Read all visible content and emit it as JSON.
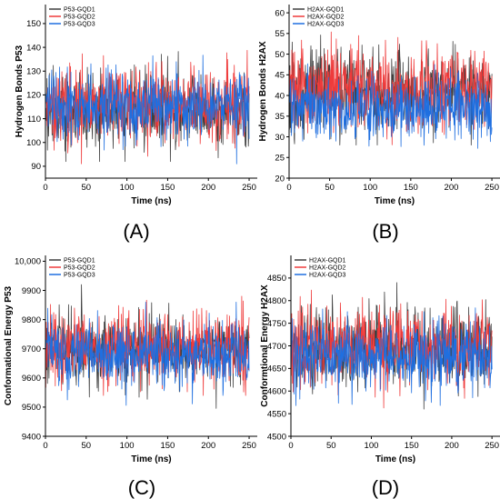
{
  "chart_data": [
    {
      "type": "line",
      "panel_label": "(A)",
      "xlabel": "Time (ns)",
      "ylabel": "Hydrogen Bonds P53",
      "xlim": [
        0,
        260
      ],
      "ylim": [
        85,
        158
      ],
      "xticks": [
        "0",
        "50",
        "100",
        "150",
        "200",
        "250"
      ],
      "yticks": [
        "90",
        "100",
        "110",
        "120",
        "130",
        "140",
        "150"
      ],
      "legend": "top-left",
      "series": [
        {
          "name": "P53-GQD1",
          "color": "#3f3f3f",
          "mean": 114,
          "spread": 8,
          "min": 92,
          "max": 140
        },
        {
          "name": "P53-GQD2",
          "color": "#ef3b3b",
          "mean": 116,
          "spread": 8,
          "min": 90,
          "max": 147
        },
        {
          "name": "P53-GQD3",
          "color": "#1f6fe0",
          "mean": 115,
          "spread": 7,
          "min": 91,
          "max": 137
        }
      ]
    },
    {
      "type": "line",
      "panel_label": "(B)",
      "xlabel": "Time (ns)",
      "ylabel": "Hydrogen Bonds H2AX",
      "xlim": [
        0,
        260
      ],
      "ylim": [
        20,
        62
      ],
      "xticks": [
        "0",
        "50",
        "100",
        "150",
        "200",
        "250"
      ],
      "yticks": [
        "20",
        "25",
        "30",
        "35",
        "40",
        "45",
        "50",
        "55",
        "60"
      ],
      "legend": "top-left",
      "series": [
        {
          "name": "H2AX-GQD1",
          "color": "#3f3f3f",
          "mean": 41,
          "spread": 5,
          "min": 28,
          "max": 57
        },
        {
          "name": "H2AX-GQD2",
          "color": "#ef3b3b",
          "mean": 42,
          "spread": 5,
          "min": 25,
          "max": 56
        },
        {
          "name": "H2AX-GQD3",
          "color": "#1f6fe0",
          "mean": 37,
          "spread": 4,
          "min": 23,
          "max": 50
        }
      ]
    },
    {
      "type": "line",
      "panel_label": "(C)",
      "xlabel": "Time (ns)",
      "ylabel": "Conformational Energy P53",
      "xlim": [
        0,
        260
      ],
      "ylim": [
        9400,
        10020
      ],
      "xticks": [
        "0",
        "50",
        "100",
        "150",
        "200",
        "250"
      ],
      "yticks": [
        "9400",
        "9500",
        "9600",
        "9700",
        "9800",
        "9900",
        "10,000"
      ],
      "legend": "top-left",
      "series": [
        {
          "name": "P53-GQD1",
          "color": "#3f3f3f",
          "mean": 9690,
          "spread": 60,
          "min": 9490,
          "max": 9920
        },
        {
          "name": "P53-GQD2",
          "color": "#ef3b3b",
          "mean": 9700,
          "spread": 60,
          "min": 9540,
          "max": 9880
        },
        {
          "name": "P53-GQD3",
          "color": "#1f6fe0",
          "mean": 9680,
          "spread": 55,
          "min": 9480,
          "max": 9860
        }
      ]
    },
    {
      "type": "line",
      "panel_label": "(D)",
      "xlabel": "Time (ns)",
      "ylabel": "Conformtional Energy H2AX",
      "xlim": [
        0,
        260
      ],
      "ylim": [
        4500,
        4900
      ],
      "xticks": [
        "0",
        "50",
        "100",
        "150",
        "200",
        "250"
      ],
      "yticks": [
        "4500",
        "4550",
        "4600",
        "4650",
        "4700",
        "4750",
        "4800",
        "4850"
      ],
      "legend": "top-left",
      "series": [
        {
          "name": "H2AX-GQD1",
          "color": "#3f3f3f",
          "mean": 4695,
          "spread": 45,
          "min": 4560,
          "max": 4840
        },
        {
          "name": "H2AX-GQD2",
          "color": "#ef3b3b",
          "mean": 4700,
          "spread": 45,
          "min": 4555,
          "max": 4850
        },
        {
          "name": "H2AX-GQD3",
          "color": "#1f6fe0",
          "mean": 4680,
          "spread": 40,
          "min": 4545,
          "max": 4800
        }
      ]
    }
  ]
}
